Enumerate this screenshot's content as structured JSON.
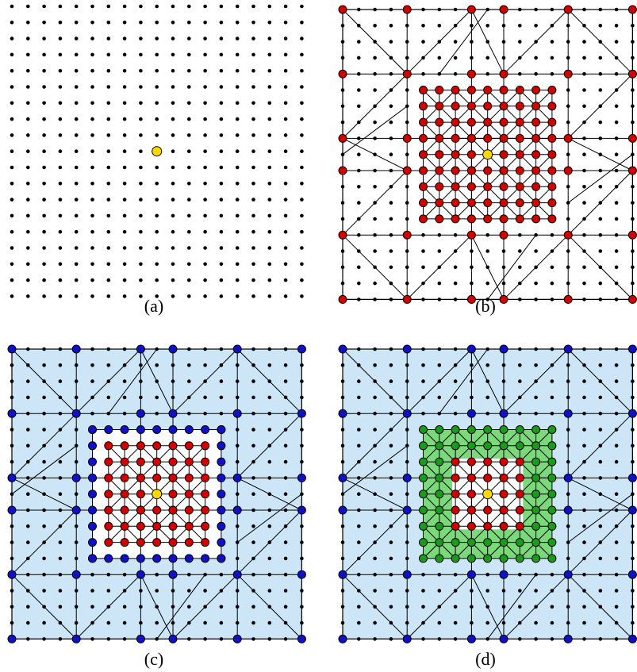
{
  "figure": {
    "panels": [
      {
        "id": "a",
        "caption": "(a)",
        "show_mesh": false,
        "refinement": "none"
      },
      {
        "id": "b",
        "caption": "(b)",
        "show_mesh": true,
        "refinement": "all-red"
      },
      {
        "id": "c",
        "caption": "(c)",
        "show_mesh": true,
        "refinement": "blue-outer"
      },
      {
        "id": "d",
        "caption": "(d)",
        "show_mesh": true,
        "refinement": "green-band"
      }
    ],
    "grid_points_per_side": 19,
    "colors": {
      "point": "#000000",
      "center": "#ffd700",
      "red": "#d40000",
      "blue": "#1010c8",
      "green": "#1a9c1a",
      "blue_region": "#cce6f8",
      "green_region": "#7bd87b",
      "line": "#000000"
    }
  }
}
